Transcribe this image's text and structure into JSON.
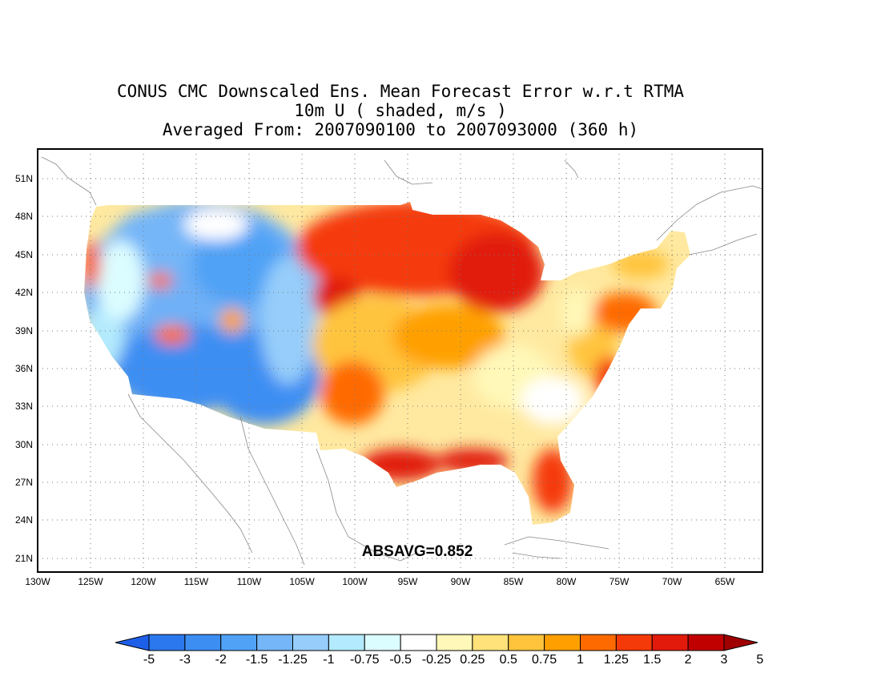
{
  "title": {
    "line1": "CONUS CMC Downscaled Ens. Mean Forecast Error w.r.t RTMA",
    "line2": "10m U ( shaded, m/s )",
    "line3": "Averaged From: 2007090100 to 2007093000 (360 h)"
  },
  "annotation": "ABSAVG=0.852",
  "lat_labels": [
    "51N",
    "48N",
    "45N",
    "42N",
    "39N",
    "36N",
    "33N",
    "30N",
    "27N",
    "24N",
    "21N"
  ],
  "lon_labels": [
    "130W",
    "125W",
    "120W",
    "115W",
    "110W",
    "105W",
    "100W",
    "95W",
    "90W",
    "85W",
    "80W",
    "75W",
    "70W",
    "65W"
  ],
  "colorbar": {
    "labels": [
      "-5",
      "-3",
      "-2",
      "-1.5",
      "-1.25",
      "-1",
      "-0.75",
      "-0.5",
      "-0.25",
      "0.25",
      "0.5",
      "0.75",
      "1",
      "1.25",
      "1.5",
      "2",
      "3",
      "5"
    ],
    "colors": [
      "#1e5fe8",
      "#2b78ee",
      "#3c8ef3",
      "#50a2f6",
      "#74b6f8",
      "#96cdfa",
      "#b4eafd",
      "#dcfdff",
      "#ffffff",
      "#fff8b8",
      "#ffe27a",
      "#ffc43c",
      "#ffa000",
      "#ff6a00",
      "#f53a0a",
      "#e11a0c",
      "#c00000",
      "#a00000"
    ]
  },
  "map": {
    "projection": "lat-lon",
    "lon_range": [
      "130W",
      "62W"
    ],
    "lat_range": [
      "20N",
      "53N"
    ],
    "gridlines": "dotted",
    "field": "10m U forecast error (m/s)"
  }
}
